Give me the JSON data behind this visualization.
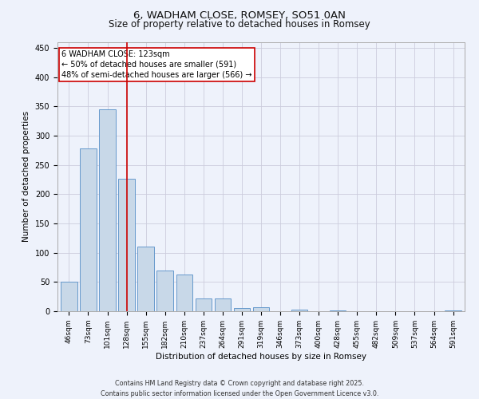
{
  "title": "6, WADHAM CLOSE, ROMSEY, SO51 0AN",
  "subtitle": "Size of property relative to detached houses in Romsey",
  "xlabel": "Distribution of detached houses by size in Romsey",
  "ylabel": "Number of detached properties",
  "categories": [
    "46sqm",
    "73sqm",
    "101sqm",
    "128sqm",
    "155sqm",
    "182sqm",
    "210sqm",
    "237sqm",
    "264sqm",
    "291sqm",
    "319sqm",
    "346sqm",
    "373sqm",
    "400sqm",
    "428sqm",
    "455sqm",
    "482sqm",
    "509sqm",
    "537sqm",
    "564sqm",
    "591sqm"
  ],
  "values": [
    51,
    278,
    345,
    226,
    110,
    70,
    63,
    22,
    22,
    5,
    7,
    0,
    3,
    0,
    2,
    0,
    0,
    0,
    0,
    0,
    2
  ],
  "bar_color": "#c8d8e8",
  "bar_edge_color": "#6699cc",
  "vline_x": 3,
  "vline_color": "#cc0000",
  "annotation_text": "6 WADHAM CLOSE: 123sqm\n← 50% of detached houses are smaller (591)\n48% of semi-detached houses are larger (566) →",
  "annotation_box_color": "#ffffff",
  "annotation_box_edge": "#cc0000",
  "ylim": [
    0,
    460
  ],
  "yticks": [
    0,
    50,
    100,
    150,
    200,
    250,
    300,
    350,
    400,
    450
  ],
  "bg_color": "#eef2fb",
  "plot_bg_color": "#eef2fb",
  "grid_color": "#ccccdd",
  "footer1": "Contains HM Land Registry data © Crown copyright and database right 2025.",
  "footer2": "Contains public sector information licensed under the Open Government Licence v3.0.",
  "title_fontsize": 9.5,
  "subtitle_fontsize": 8.5,
  "tick_fontsize": 6.5,
  "axis_label_fontsize": 7.5,
  "annotation_fontsize": 7.0,
  "footer_fontsize": 5.8
}
